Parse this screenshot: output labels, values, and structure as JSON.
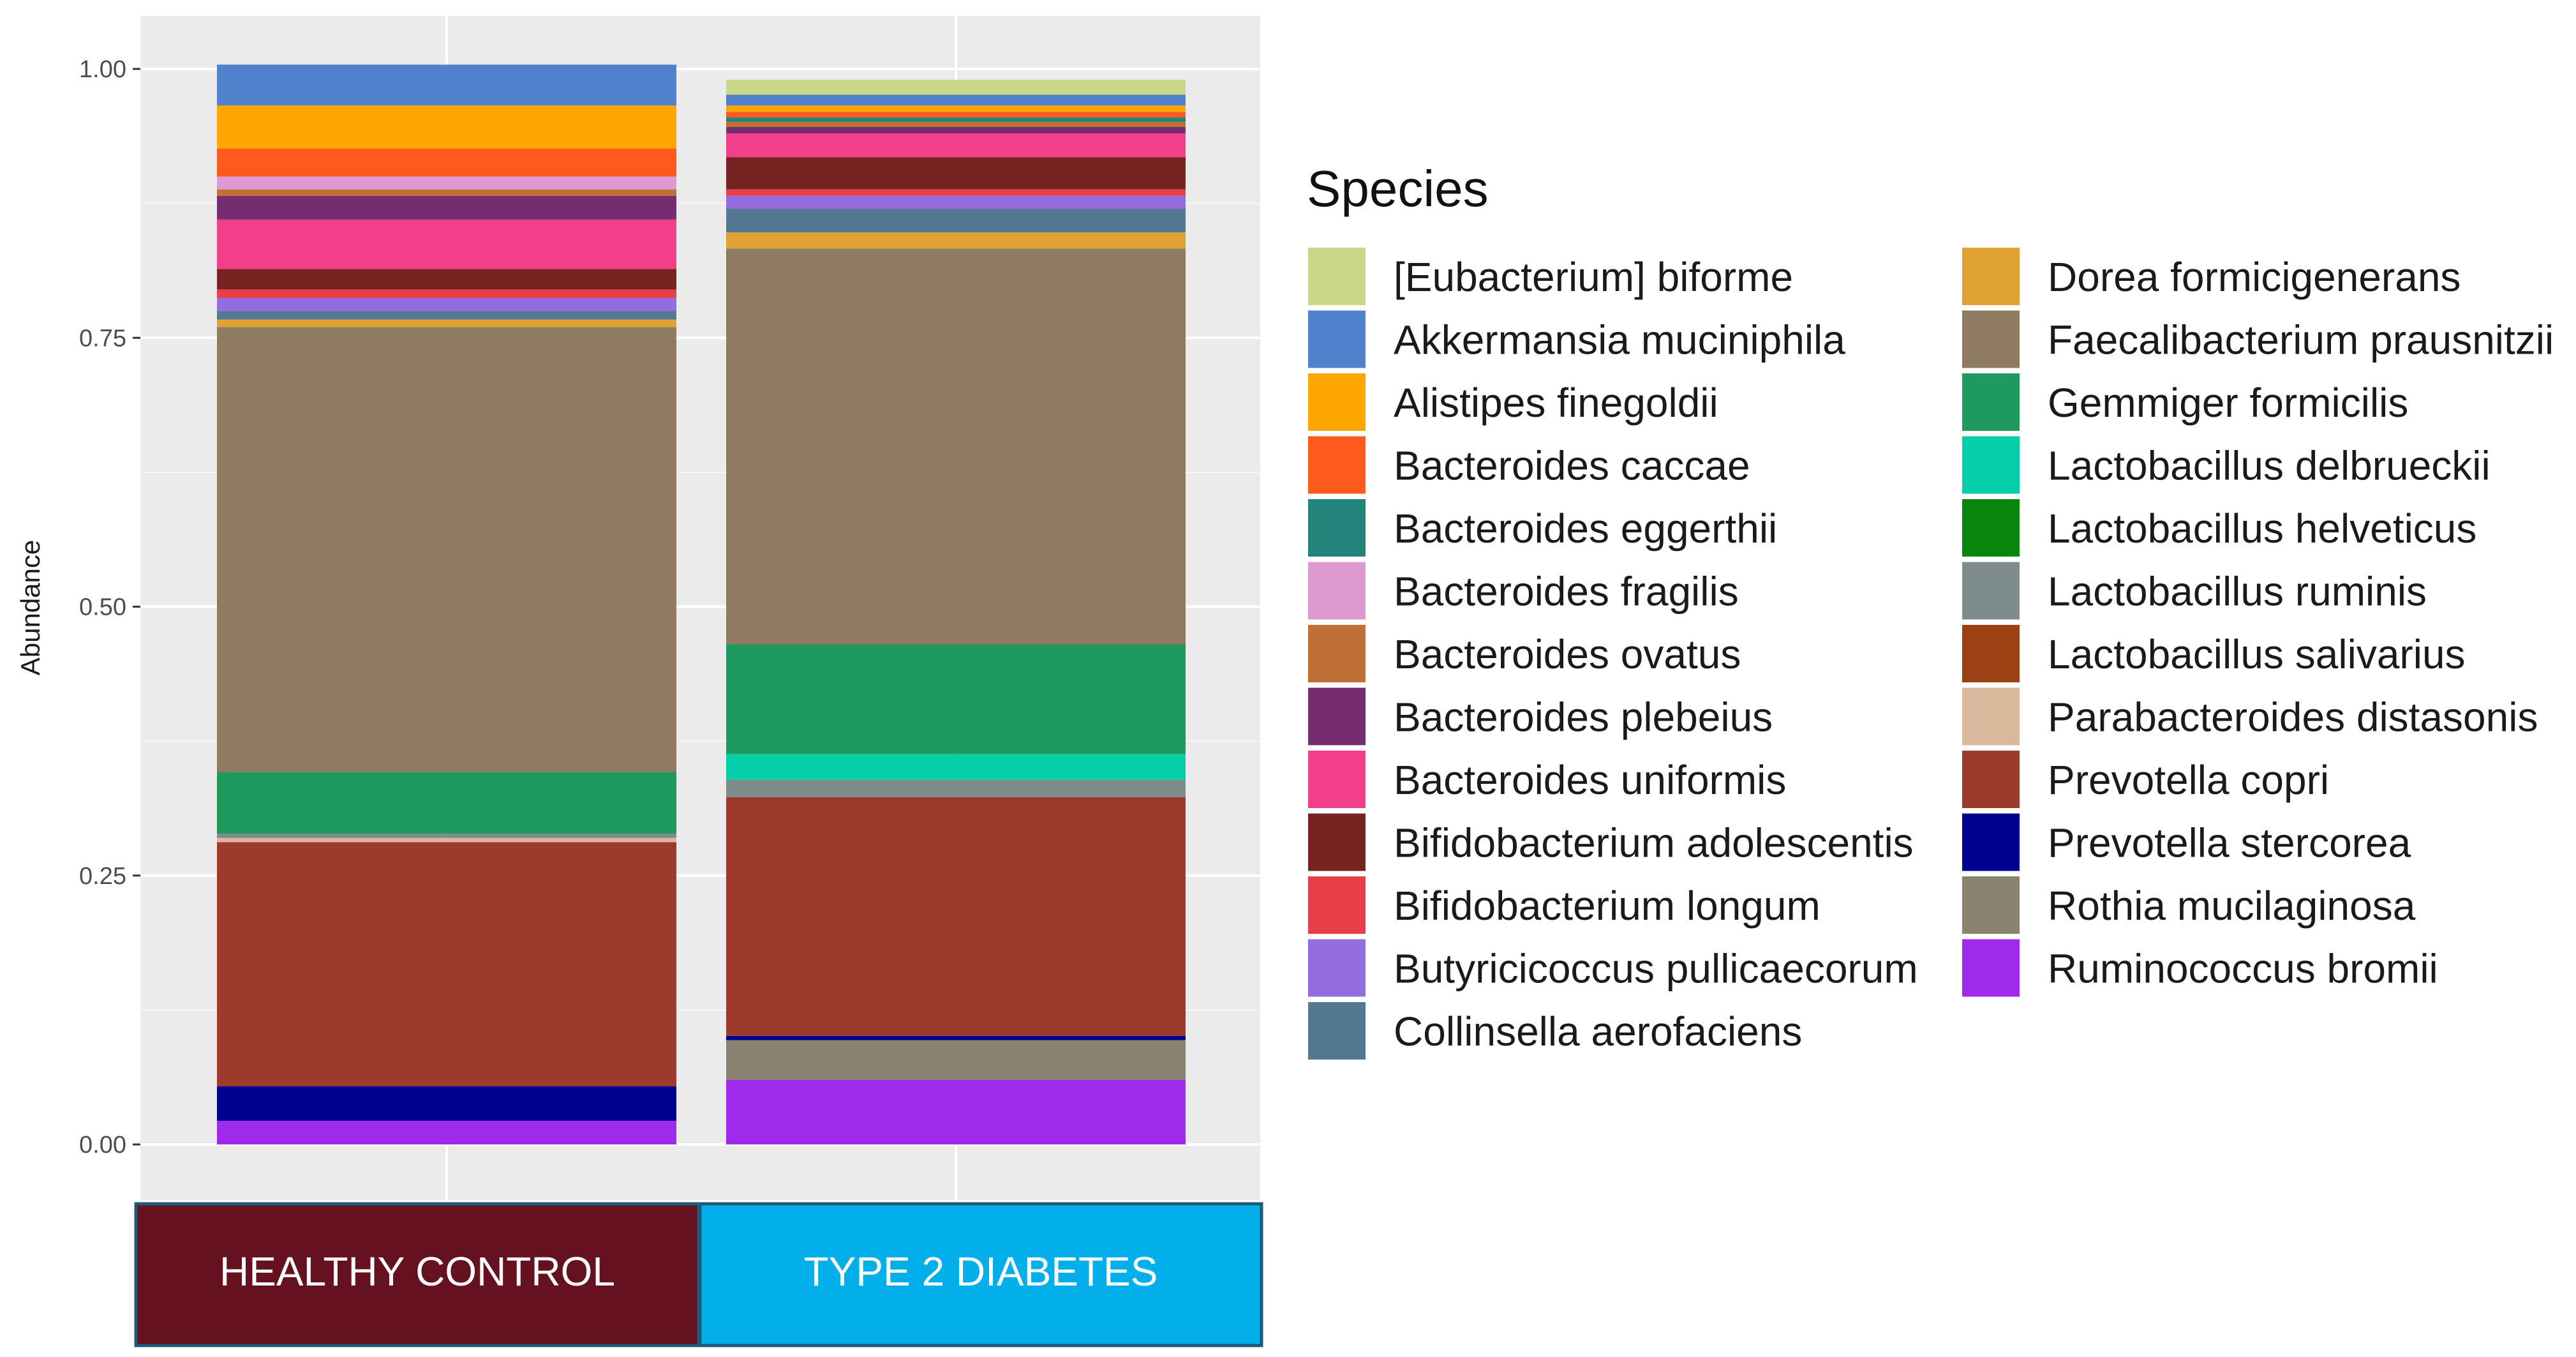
{
  "chart_data": {
    "type": "stacked-bar",
    "ylabel": "Abundance",
    "ylim": [
      0,
      1
    ],
    "yticks": [
      {
        "value": 0.0,
        "label": "0.00"
      },
      {
        "value": 0.25,
        "label": "0.25"
      },
      {
        "value": 0.5,
        "label": "0.50"
      },
      {
        "value": 0.75,
        "label": "0.75"
      },
      {
        "value": 1.0,
        "label": "1.00"
      }
    ],
    "grid": true,
    "legend": {
      "title": "Species",
      "position": "right",
      "columns": 2
    },
    "categories": [
      "HEALTHY CONTROL",
      "TYPE 2 DIABETES"
    ],
    "category_colors": [
      "#651120",
      "#03AFEB"
    ],
    "series": [
      {
        "name": "[Eubacterium] biforme",
        "color": "#C8D888",
        "values": [
          0.0,
          0.014
        ]
      },
      {
        "name": "Akkermansia muciniphila",
        "color": "#4F81CC",
        "values": [
          0.038,
          0.01
        ]
      },
      {
        "name": "Alistipes finegoldii",
        "color": "#FFA600",
        "values": [
          0.04,
          0.006
        ]
      },
      {
        "name": "Bacteroides caccae",
        "color": "#FF5A1E",
        "values": [
          0.026,
          0.005
        ]
      },
      {
        "name": "Bacteroides eggerthii",
        "color": "#22847A",
        "values": [
          0.0,
          0.004
        ]
      },
      {
        "name": "Bacteroides fragilis",
        "color": "#DE9AD0",
        "values": [
          0.012,
          0.0
        ]
      },
      {
        "name": "Bacteroides ovatus",
        "color": "#C07034",
        "values": [
          0.006,
          0.005
        ]
      },
      {
        "name": "Bacteroides plebeius",
        "color": "#752C70",
        "values": [
          0.022,
          0.006
        ]
      },
      {
        "name": "Bacteroides uniformis",
        "color": "#F13F8A",
        "values": [
          0.046,
          0.022
        ]
      },
      {
        "name": "Bifidobacterium adolescentis",
        "color": "#762422",
        "values": [
          0.019,
          0.03
        ]
      },
      {
        "name": "Bifidobacterium longum",
        "color": "#E73E4A",
        "values": [
          0.008,
          0.006
        ]
      },
      {
        "name": "Butyricicoccus pullicaecorum",
        "color": "#936DDE",
        "values": [
          0.012,
          0.012
        ]
      },
      {
        "name": "Collinsella aerofaciens",
        "color": "#547891",
        "values": [
          0.008,
          0.022
        ]
      },
      {
        "name": "Dorea formicigenerans",
        "color": "#E1A234",
        "values": [
          0.007,
          0.015
        ]
      },
      {
        "name": "Faecalibacterium prausnitzii",
        "color": "#8F7A62",
        "values": [
          0.414,
          0.368
        ]
      },
      {
        "name": "Gemmiger formicilis",
        "color": "#1F9A5F",
        "values": [
          0.057,
          0.102
        ]
      },
      {
        "name": "Lactobacillus delbrueckii",
        "color": "#05CFA9",
        "values": [
          0.0,
          0.024
        ]
      },
      {
        "name": "Lactobacillus helveticus",
        "color": "#09860D",
        "values": [
          0.0,
          0.0
        ]
      },
      {
        "name": "Lactobacillus ruminis",
        "color": "#7E8D8C",
        "values": [
          0.004,
          0.016
        ]
      },
      {
        "name": "Lactobacillus salivarius",
        "color": "#9C4113",
        "values": [
          0.0,
          0.0
        ]
      },
      {
        "name": "Parabacteroides distasonis",
        "color": "#D9B89C",
        "values": [
          0.004,
          0.0
        ]
      },
      {
        "name": "Prevotella copri",
        "color": "#9D3A2C",
        "values": [
          0.227,
          0.222
        ]
      },
      {
        "name": "Prevotella stercorea",
        "color": "#000090",
        "values": [
          0.032,
          0.004
        ]
      },
      {
        "name": "Rothia mucilaginosa",
        "color": "#89836F",
        "values": [
          0.0,
          0.037
        ]
      },
      {
        "name": "Ruminococcus bromii",
        "color": "#A02AEB",
        "values": [
          0.022,
          0.06
        ]
      }
    ]
  }
}
